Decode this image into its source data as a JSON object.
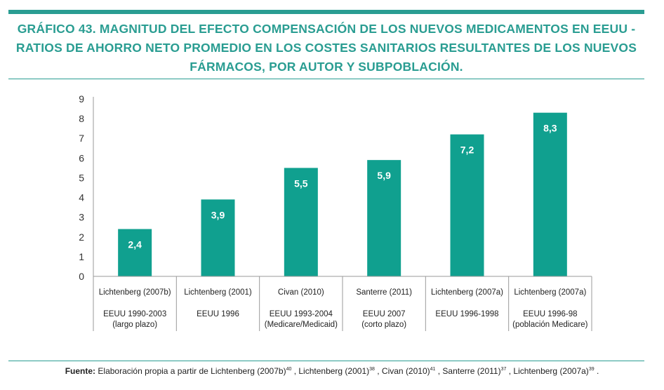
{
  "title": "GRÁFICO 43. MAGNITUD DEL EFECTO COMPENSACIÓN DE LOS NUEVOS MEDICAMENTOS EN EEUU - RATIOS DE AHORRO NETO PROMEDIO EN LOS COSTES SANITARIOS RESULTANTES DE LOS NUEVOS FÁRMACOS, POR AUTOR Y SUBPOBLACIÓN.",
  "source": {
    "label": "Fuente:",
    "text_1": " Elaboración propia a partir de Lichtenberg (2007b)",
    "sup_1": "40",
    "text_2": " , Lichtenberg (2001)",
    "sup_2": "38",
    "text_3": " , Civan (2010)",
    "sup_3": "41",
    "text_4": " , Santerre (2011)",
    "sup_4": "37",
    "text_5": " , Lichtenberg (2007a)",
    "sup_5": "39",
    "text_6": " ."
  },
  "colors": {
    "accent": "#2a9d92",
    "bar": "#10a08f"
  },
  "chart_data": {
    "type": "bar",
    "categories": [
      {
        "author": "Lichtenberg (2007b)",
        "lines": [
          "EEUU 1990-2003",
          "(largo plazo)"
        ]
      },
      {
        "author": "Lichtenberg (2001)",
        "lines": [
          "EEUU 1996"
        ]
      },
      {
        "author": "Civan (2010)",
        "lines": [
          "EEUU 1993-2004",
          "(Medicare/Medicaid)"
        ]
      },
      {
        "author": "Santerre (2011)",
        "lines": [
          "EEUU 2007",
          "(corto plazo)"
        ]
      },
      {
        "author": "Lichtenberg (2007a)",
        "lines": [
          "EEUU 1996-1998"
        ]
      },
      {
        "author": "Lichtenberg (2007a)",
        "lines": [
          "EEUU 1996-98",
          "(población Medicare)"
        ]
      }
    ],
    "values": [
      2.4,
      3.9,
      5.5,
      5.9,
      7.2,
      8.3
    ],
    "value_labels": [
      "2,4",
      "3,9",
      "5,5",
      "5,9",
      "7,2",
      "8,3"
    ],
    "ylim": [
      0,
      9
    ],
    "yticks": [
      "0",
      "1",
      "2",
      "3",
      "4",
      "5",
      "6",
      "7",
      "8",
      "9"
    ],
    "grid": false,
    "legend": "none"
  }
}
